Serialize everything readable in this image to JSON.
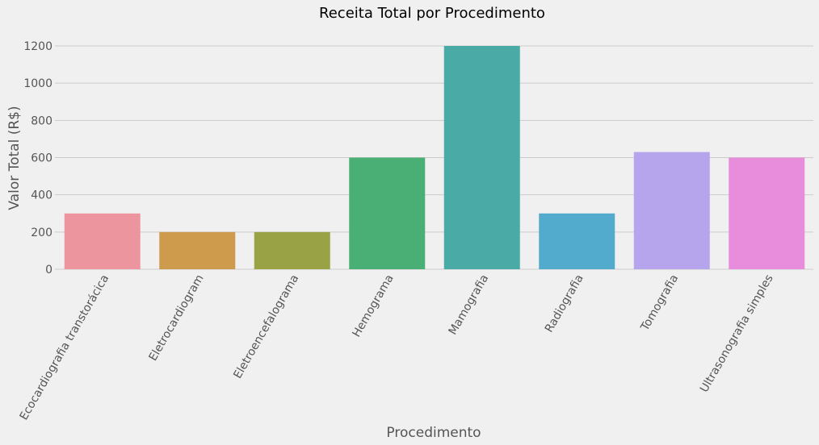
{
  "chart_data": {
    "type": "bar",
    "title": "Receita Total por Procedimento",
    "xlabel": "Procedimento",
    "ylabel": "Valor Total (R$)",
    "categories": [
      "Ecocardiografia transtorácica",
      "Eletrocardiogram",
      "Eletroencefalograma",
      "Hemograma",
      "Mamografia",
      "Radiografia",
      "Tomografia",
      "Ultrasonografia simples"
    ],
    "values": [
      300,
      200,
      200,
      600,
      1200,
      300,
      630,
      600
    ],
    "colors": [
      "#ed959f",
      "#ce9a4b",
      "#99a345",
      "#4aaf74",
      "#4aaaa6",
      "#52aacd",
      "#b6a5ed",
      "#e88ddb"
    ],
    "ylim": [
      0,
      1200
    ],
    "yticks": [
      "0",
      "200",
      "400",
      "600",
      "800",
      "1000",
      "1200"
    ],
    "grid": true,
    "legend": "none"
  }
}
